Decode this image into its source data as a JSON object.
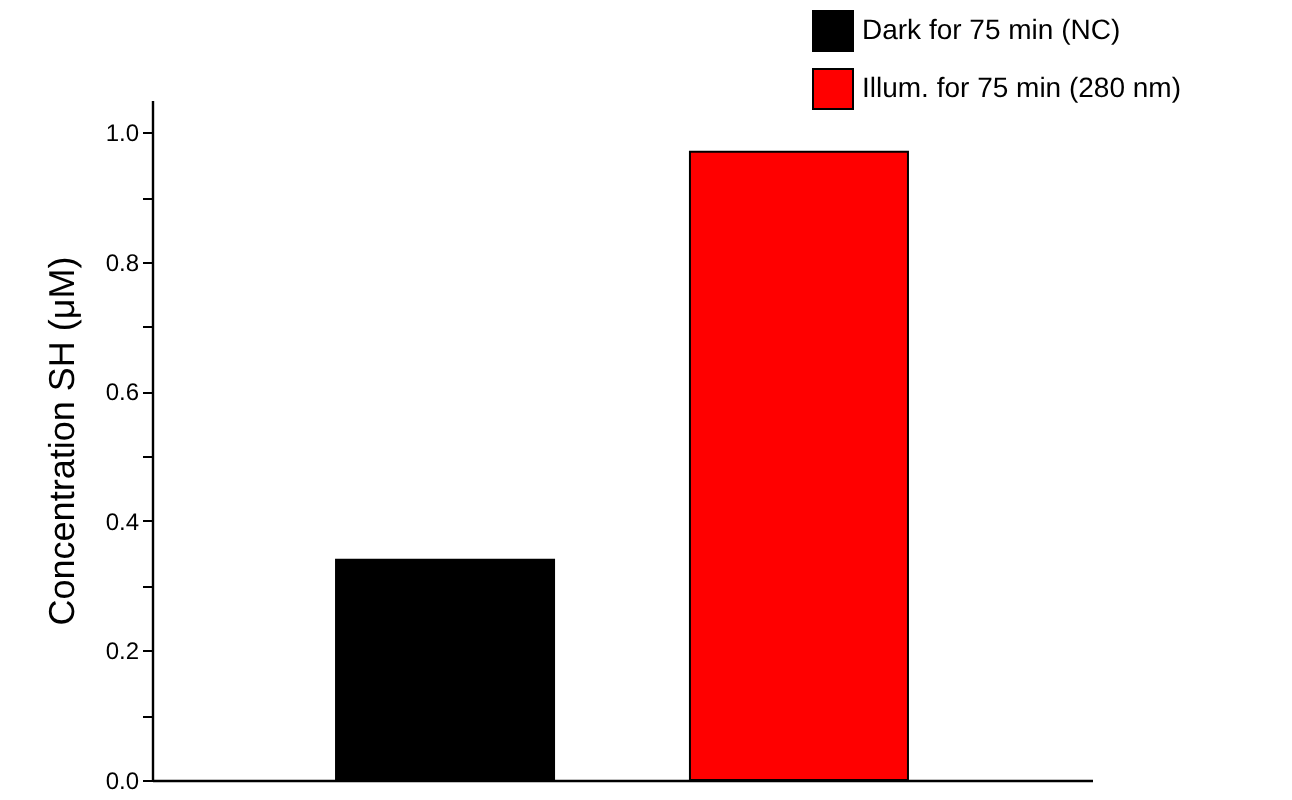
{
  "chart_data": {
    "type": "bar",
    "ylabel": "Concentration SH (μM)",
    "categories": [
      null,
      null
    ],
    "series": [
      {
        "name": "Dark for 75 min (NC)",
        "color": "#000000",
        "values": [
          0.34,
          null
        ]
      },
      {
        "name": "Illum. for 75 min (280 nm)",
        "color": "#ff0000",
        "values": [
          null,
          0.97
        ]
      }
    ],
    "ylim": [
      0,
      1.05
    ],
    "yticks": [
      {
        "value": 0,
        "label": "0.0"
      },
      {
        "value": 0.1,
        "label": null
      },
      {
        "value": 0.2,
        "label": "0.2"
      },
      {
        "value": 0.3,
        "label": null
      },
      {
        "value": 0.4,
        "label": "0.4"
      },
      {
        "value": 0.5,
        "label": null
      },
      {
        "value": 0.6,
        "label": "0.6"
      },
      {
        "value": 0.7,
        "label": null
      },
      {
        "value": 0.8,
        "label": "0.8"
      },
      {
        "value": 0.9,
        "label": null
      },
      {
        "value": 1.0,
        "label": "1.0"
      }
    ],
    "legend": "top right",
    "grid": false,
    "tick_labels": "y"
  }
}
